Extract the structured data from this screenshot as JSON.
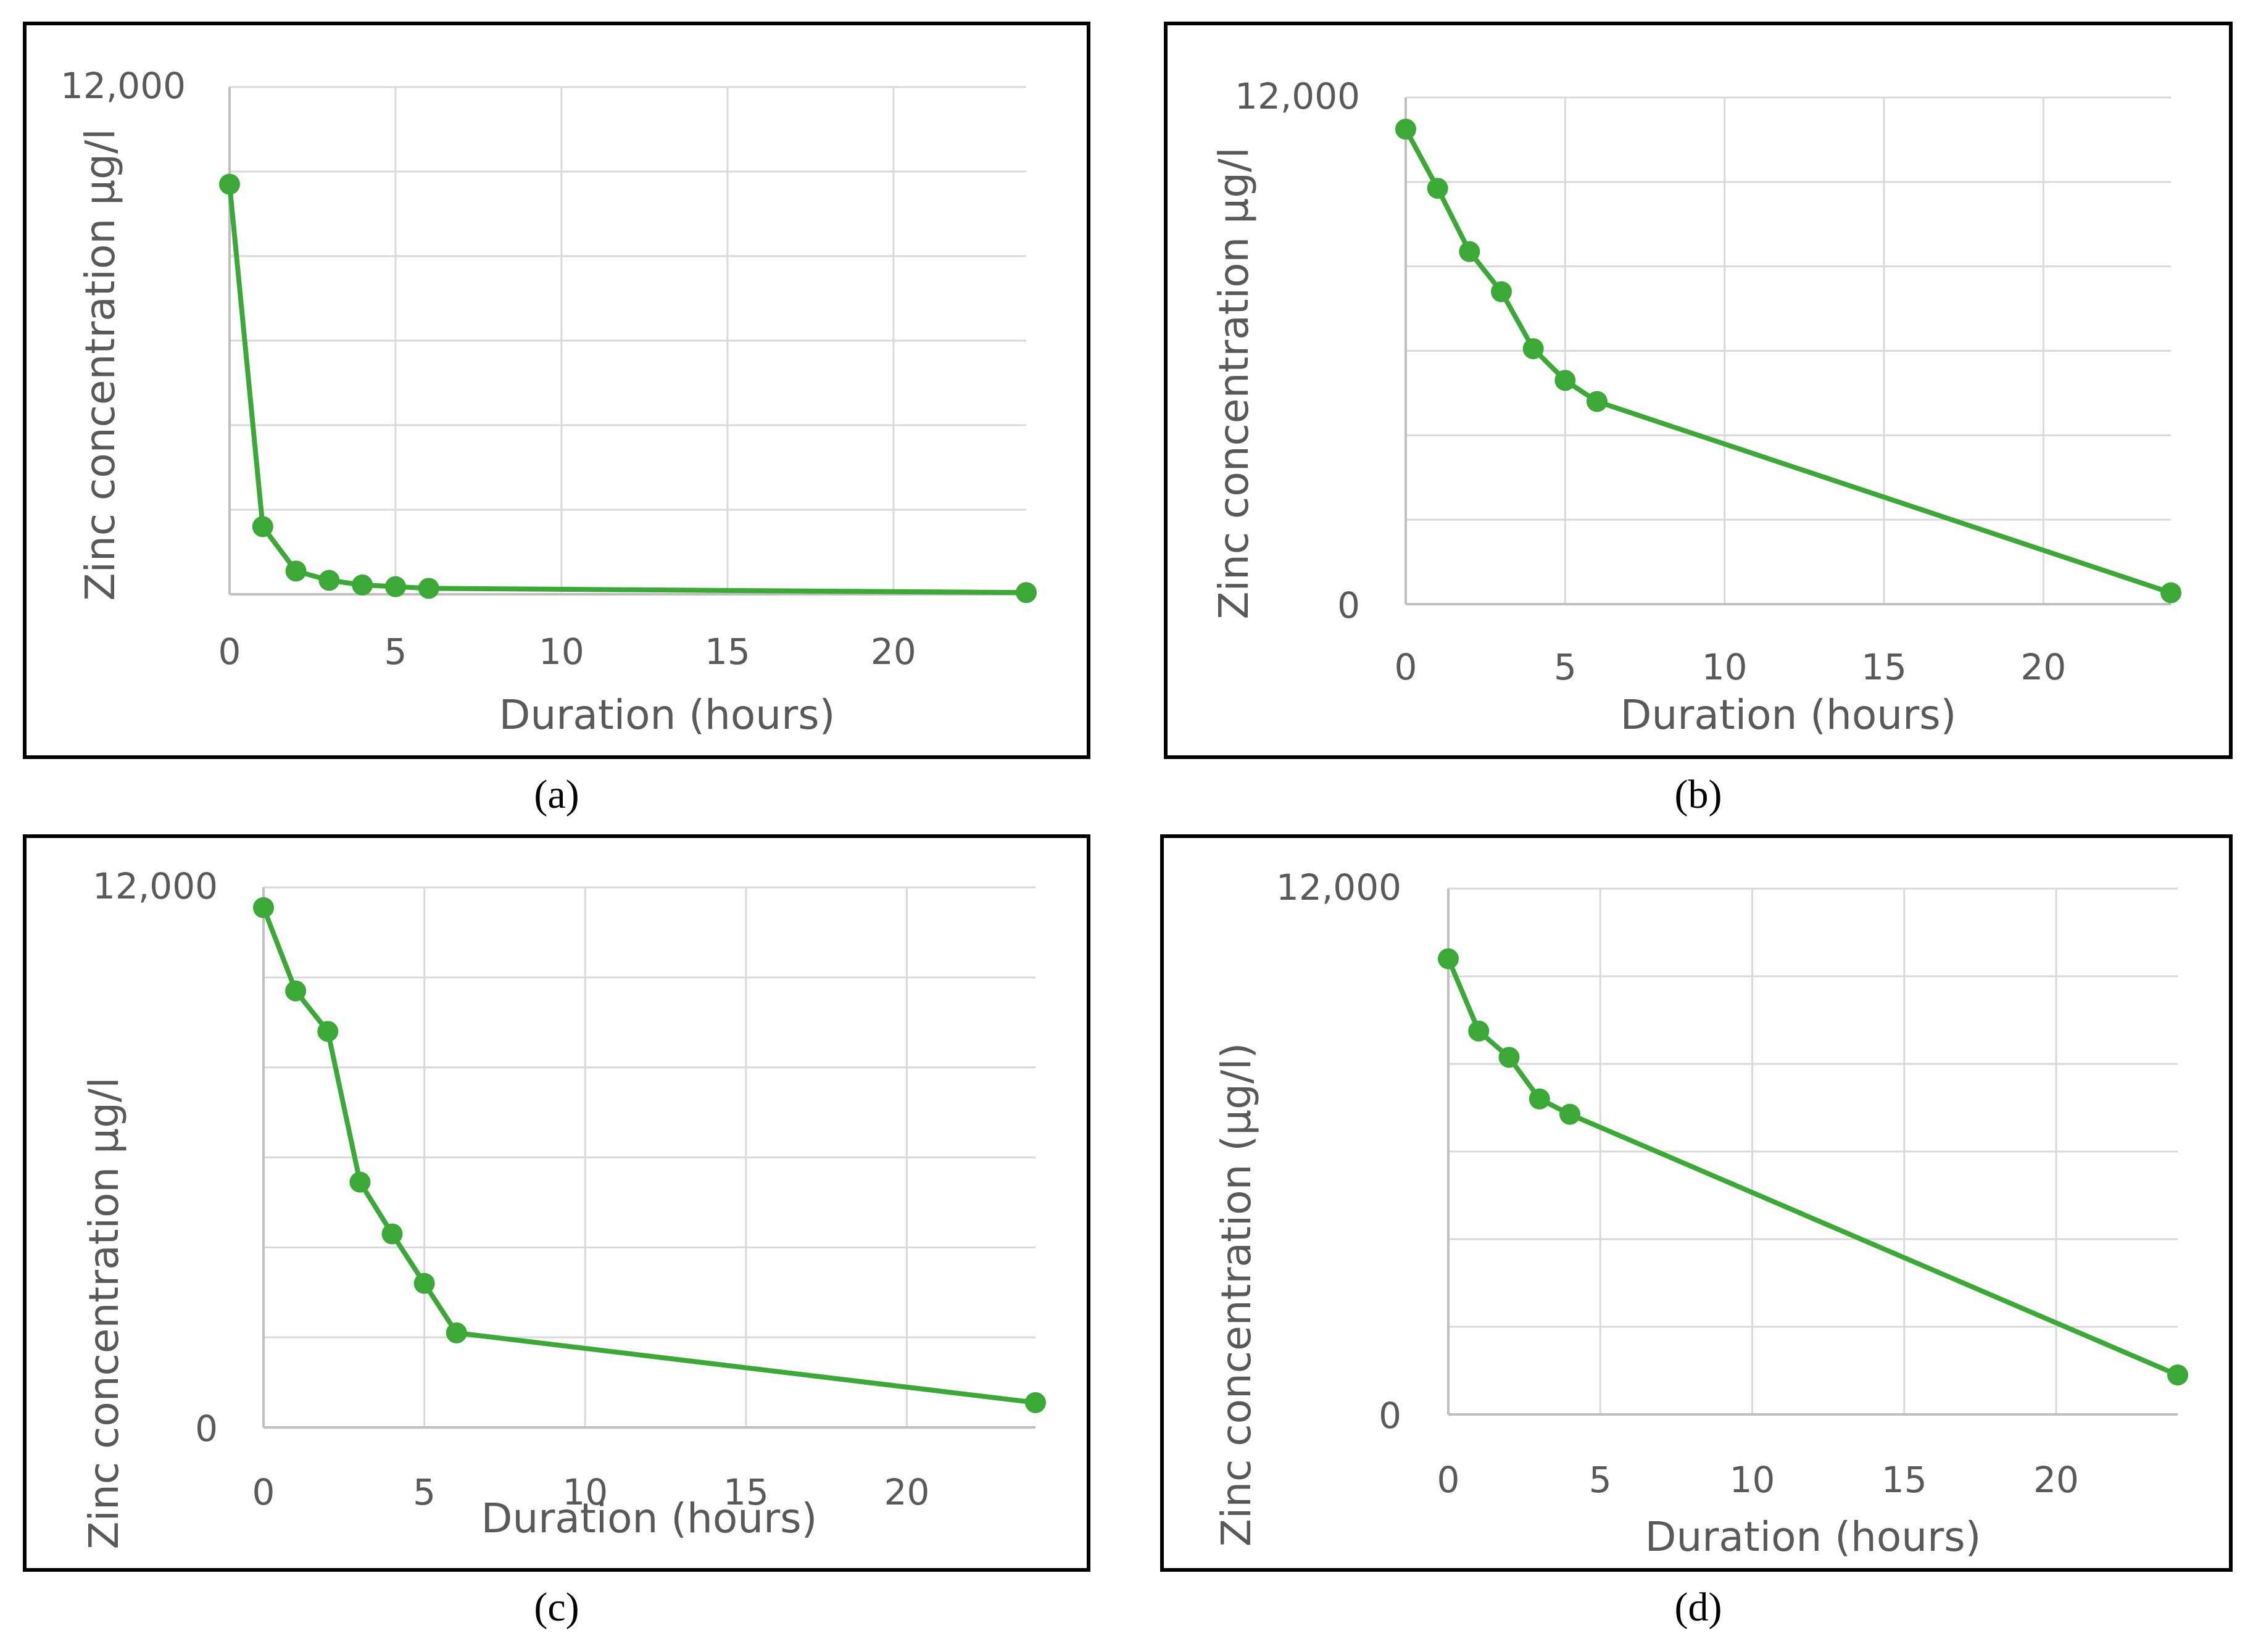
{
  "chart_data": [
    {
      "type": "line",
      "panel": "(a)",
      "xlabel": "Duration (hours)",
      "ylabel": "Zinc concentration µg/l",
      "xlim": [
        0,
        24
      ],
      "ylim": [
        0,
        12000
      ],
      "xticks": [
        0,
        5,
        10,
        15,
        20
      ],
      "ytick_labels": [
        "12,000"
      ],
      "x": [
        0,
        1,
        2,
        3,
        4,
        5,
        6,
        24
      ],
      "values": [
        9700,
        1600,
        550,
        330,
        220,
        180,
        140,
        40
      ],
      "color": "#3aa935"
    },
    {
      "type": "line",
      "panel": "(b)",
      "xlabel": "Duration (hours)",
      "ylabel": "Zinc concentration µg/l",
      "xlim": [
        0,
        24
      ],
      "ylim": [
        0,
        12000
      ],
      "xticks": [
        0,
        5,
        10,
        15,
        20
      ],
      "ytick_labels": [
        "12,000",
        "0"
      ],
      "x": [
        0,
        1,
        2,
        3,
        4,
        5,
        6,
        24
      ],
      "values": [
        11250,
        9850,
        8350,
        7400,
        6050,
        5300,
        4800,
        270
      ],
      "color": "#3aa935"
    },
    {
      "type": "line",
      "panel": "(c)",
      "xlabel": "Duration (hours)",
      "ylabel": "Zinc concentration µg/l",
      "xlim": [
        0,
        24
      ],
      "ylim": [
        0,
        12000
      ],
      "xticks": [
        0,
        5,
        10,
        15,
        20
      ],
      "ytick_labels": [
        "12,000",
        "0"
      ],
      "x": [
        0,
        1,
        2,
        3,
        4,
        5,
        6,
        24
      ],
      "values": [
        11550,
        9700,
        8800,
        5450,
        4300,
        3200,
        2100,
        550
      ],
      "color": "#3aa935"
    },
    {
      "type": "line",
      "panel": "(d)",
      "xlabel": "Duration (hours)",
      "ylabel": "Zinc concentration (µg/l)",
      "xlim": [
        0,
        24
      ],
      "ylim": [
        0,
        12000
      ],
      "xticks": [
        0,
        5,
        10,
        15,
        20
      ],
      "ytick_labels": [
        "12,000",
        "0"
      ],
      "x": [
        0,
        1,
        2,
        3,
        4,
        24
      ],
      "values": [
        10400,
        8750,
        8150,
        7200,
        6850,
        900
      ],
      "color": "#3aa935"
    }
  ]
}
